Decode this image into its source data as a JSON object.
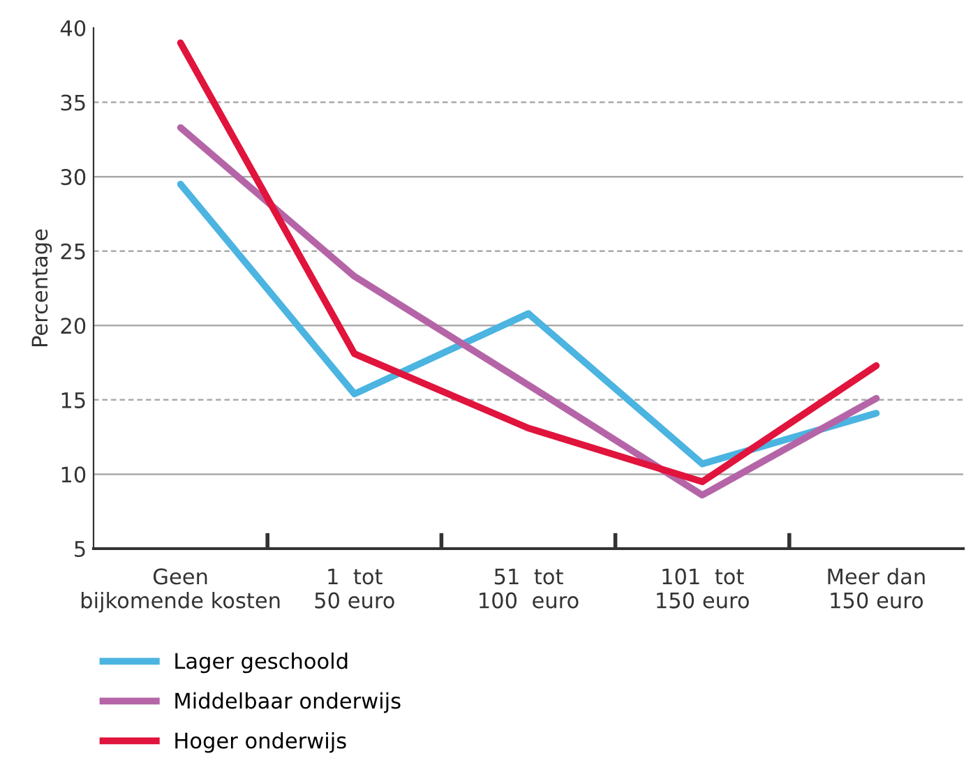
{
  "chart_data": {
    "type": "line",
    "ylabel": "Percentage",
    "categories": [
      "Geen\nbijkomende kosten",
      "1  tot\n50 euro",
      "51  tot\n100  euro",
      "101  tot\n150 euro",
      "Meer dan\n150 euro"
    ],
    "series": [
      {
        "name": "Lager geschoold",
        "color": "#4bb4e0",
        "values": [
          29.5,
          15.4,
          20.8,
          10.7,
          14.1
        ]
      },
      {
        "name": "Middelbaar onderwijs",
        "color": "#b565a7",
        "values": [
          33.3,
          23.3,
          16.0,
          8.6,
          15.1
        ]
      },
      {
        "name": "Hoger onderwijs",
        "color": "#e0143c",
        "values": [
          39.0,
          18.1,
          13.1,
          9.5,
          17.3
        ]
      }
    ],
    "ylim": [
      5,
      40
    ],
    "yticks": [
      5,
      10,
      15,
      20,
      25,
      30,
      35,
      40
    ],
    "grid": "y",
    "legend": "bottom left",
    "marker": "none",
    "line_style": "solid"
  }
}
